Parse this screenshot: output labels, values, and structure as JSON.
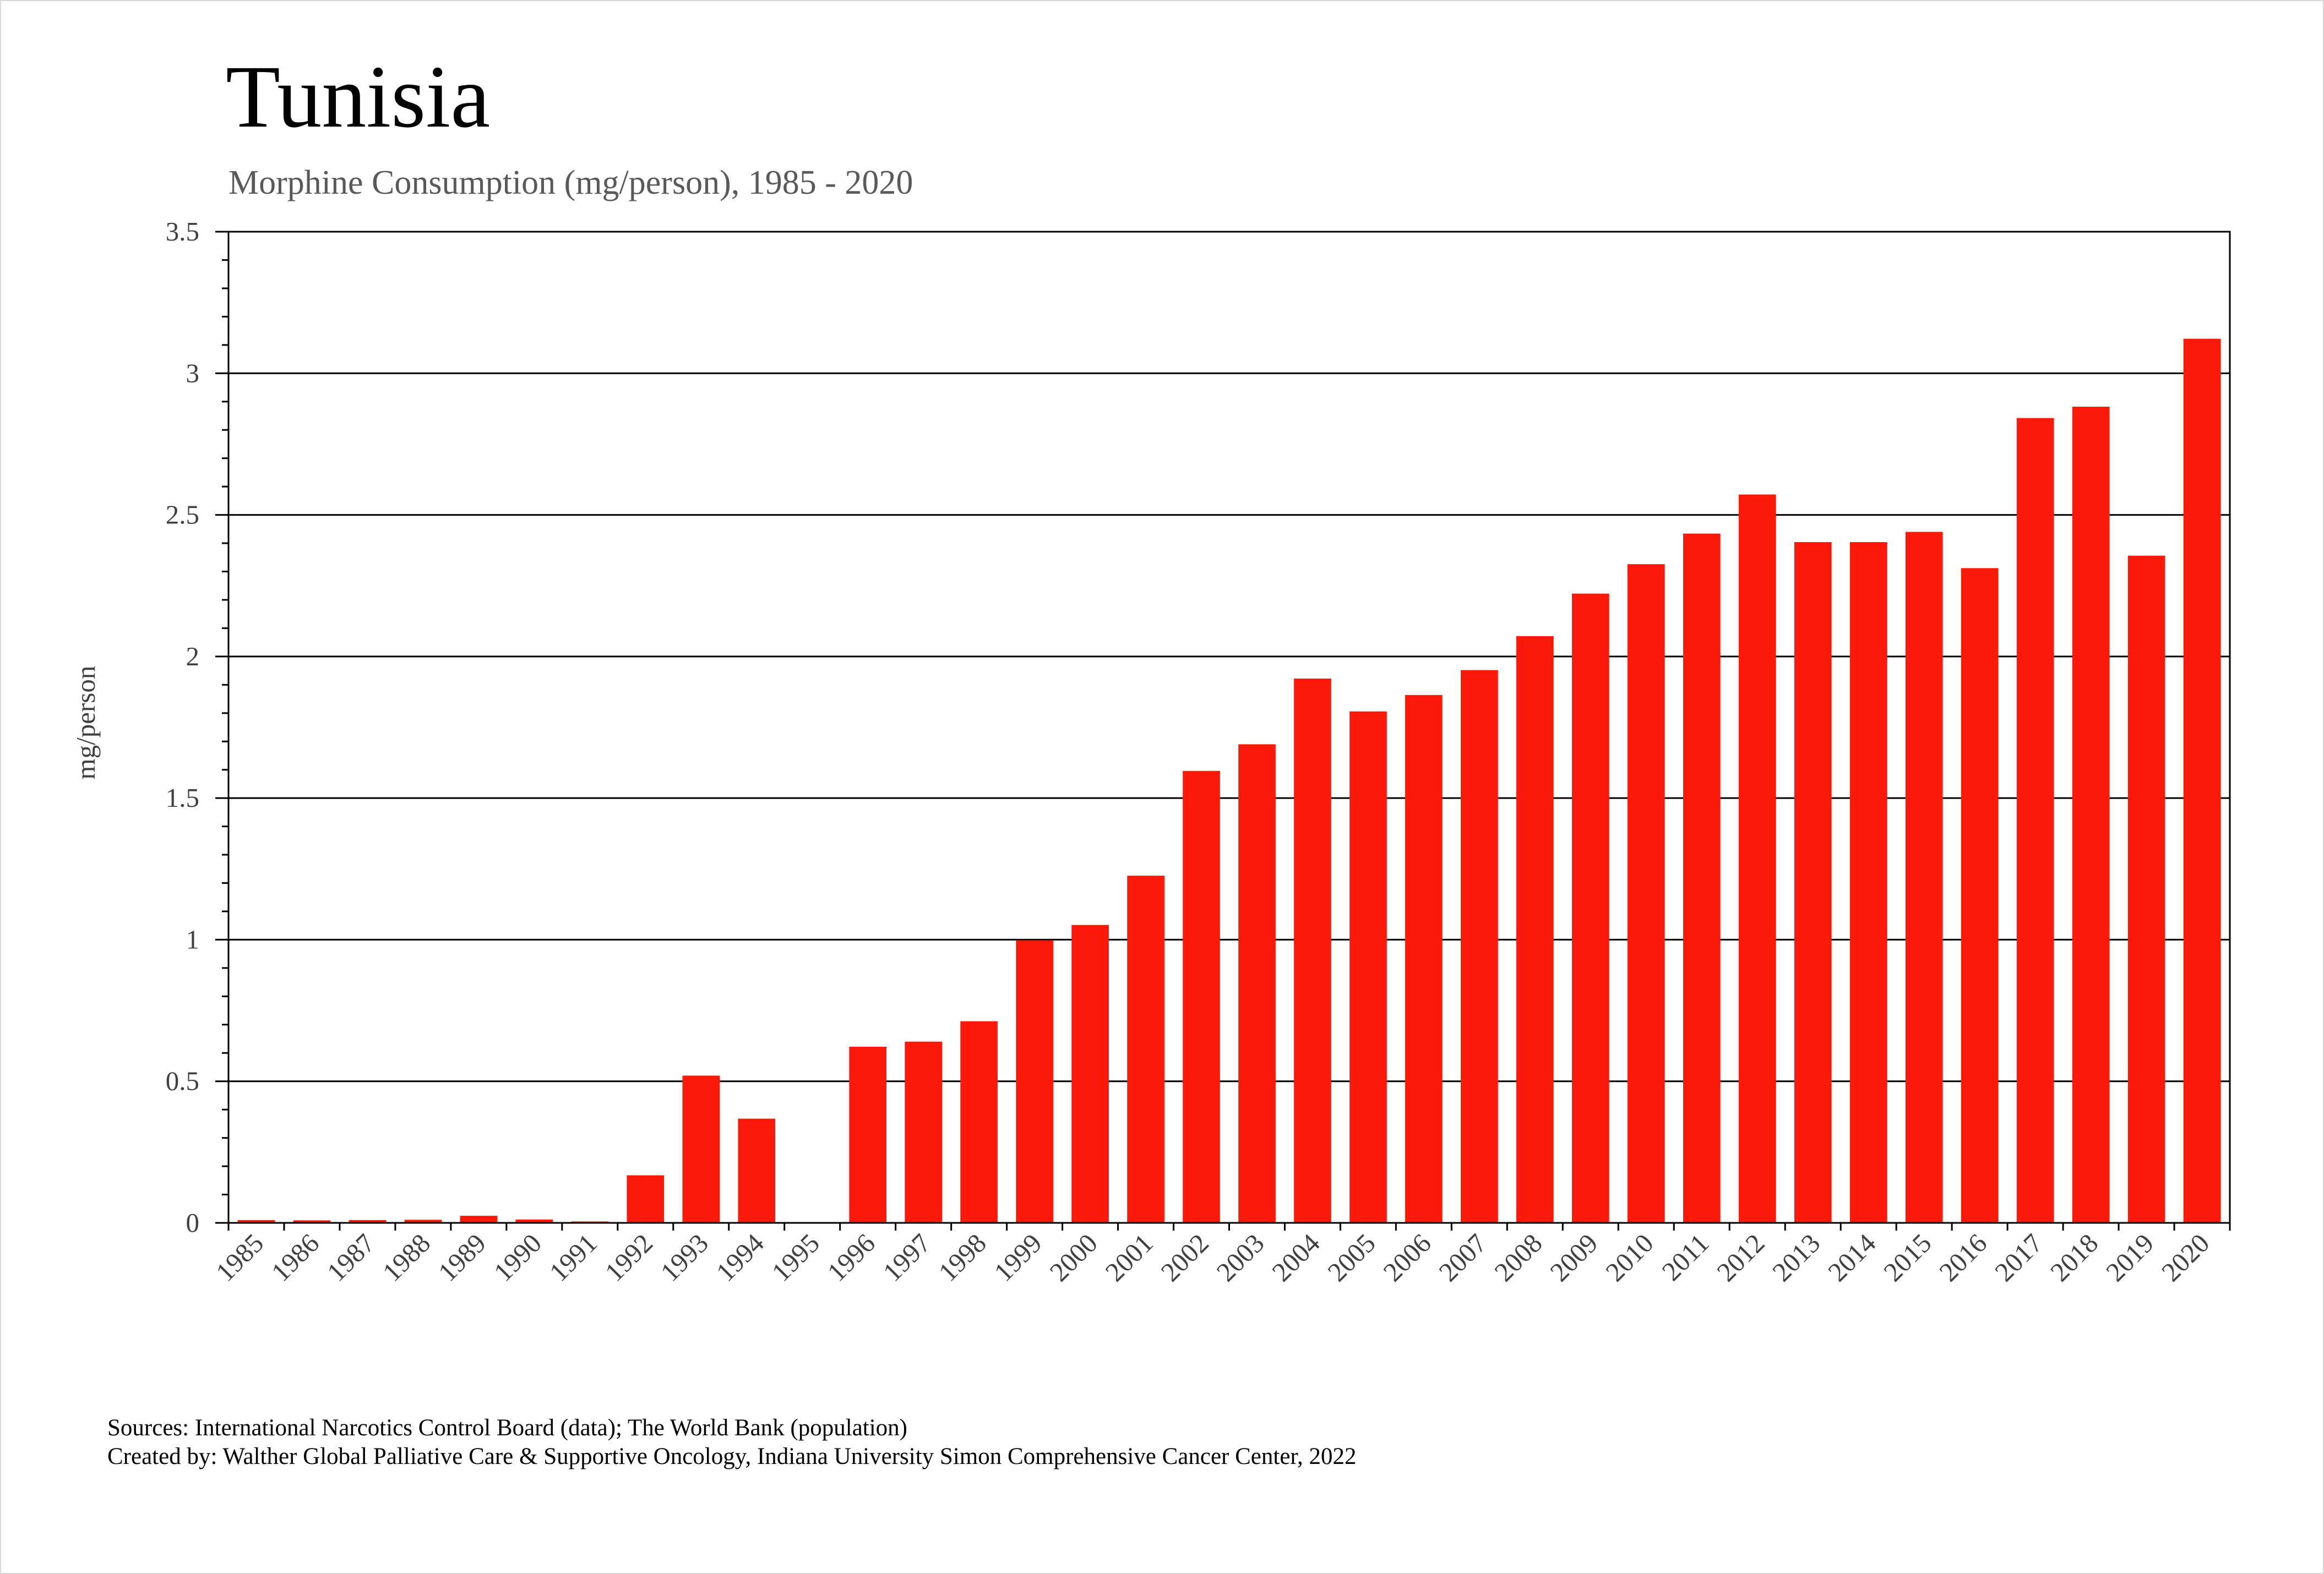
{
  "chart_data": {
    "type": "bar",
    "title": "Tunisia",
    "subtitle": "Morphine Consumption (mg/person), 1985 - 2020",
    "ylabel": "mg/person",
    "xlabel": "",
    "ylim": [
      0,
      3.5
    ],
    "yticks": [
      "0",
      "0.5",
      "1",
      "1.5",
      "2",
      "2.5",
      "3",
      "3.5"
    ],
    "grid": "horizontal",
    "categories": [
      "1985",
      "1986",
      "1987",
      "1988",
      "1989",
      "1990",
      "1991",
      "1992",
      "1993",
      "1994",
      "1995",
      "1996",
      "1997",
      "1998",
      "1999",
      "2000",
      "2001",
      "2002",
      "2003",
      "2004",
      "2005",
      "2006",
      "2007",
      "2008",
      "2009",
      "2010",
      "2011",
      "2012",
      "2013",
      "2014",
      "2015",
      "2016",
      "2017",
      "2018",
      "2019",
      "2020"
    ],
    "values": [
      0.01,
      0.009,
      0.01,
      0.011,
      0.025,
      0.012,
      0.005,
      0.168,
      0.52,
      0.368,
      0,
      0.622,
      0.64,
      0.712,
      0.998,
      1.052,
      1.226,
      1.596,
      1.69,
      1.922,
      1.806,
      1.864,
      1.952,
      2.072,
      2.222,
      2.326,
      2.434,
      2.572,
      2.404,
      2.404,
      2.44,
      2.312,
      2.842,
      2.882,
      2.356,
      3.122
    ],
    "colors": {
      "bar": "#fb1a0a",
      "grid": "#000000",
      "axis": "#000000"
    }
  },
  "footer": {
    "sources": "Sources: International Narcotics Control Board (data); The World Bank (population)",
    "created_by": "Created by: Walther  Global Palliative Care & Supportive Oncology, Indiana University Simon Comprehensive Cancer Center, 2022"
  }
}
